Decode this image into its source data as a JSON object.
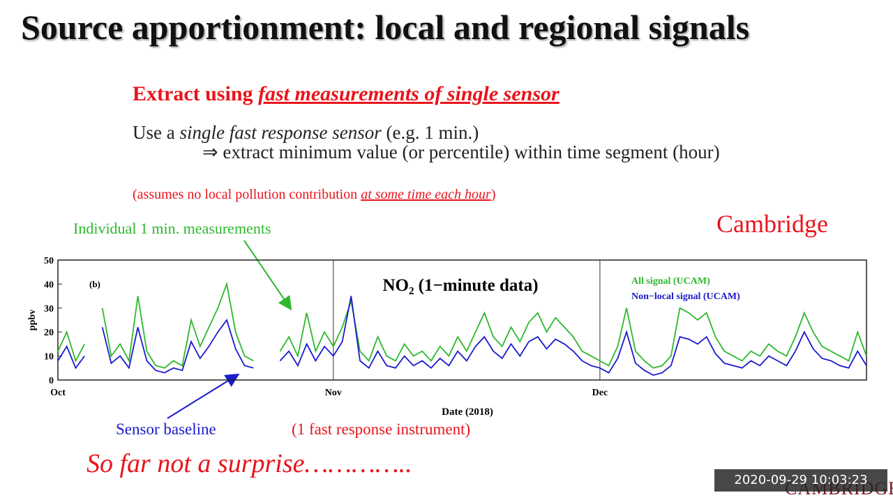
{
  "slide": {
    "title": "Source apportionment: local and regional signals",
    "heading": [
      "Extract using ",
      "fast measurements of single sensor"
    ],
    "line1": [
      "Use a ",
      "single fast response sensor",
      " (e.g. 1 min.)"
    ],
    "line2": "⇒ extract minimum value (or percentile) within time segment (hour)",
    "note": [
      "(assumes no local pollution contribution ",
      "at some time each hour",
      ")"
    ],
    "annotation_green": "Individual 1 min. measurements",
    "place": "Cambridge",
    "annotation_blue": "Sensor baseline",
    "annotation_instrument": "(1 fast response instrument)",
    "conclusion": "So far not a surprise…………..",
    "timestamp": "2020-09-29 10:03:23",
    "logo": "CAMBRIDGE"
  },
  "chart_data": {
    "type": "line",
    "title": "NO₂ (1−minute data)",
    "panel_label": "(b)",
    "xlabel": "Date (2018)",
    "ylabel": "ppbv",
    "ylim": [
      0,
      50
    ],
    "yticks": [
      0,
      10,
      20,
      30,
      40,
      50
    ],
    "categories": [
      "Oct",
      null,
      null,
      null,
      null,
      null,
      null,
      null,
      null,
      null,
      null,
      null,
      null,
      null,
      null,
      null,
      null,
      null,
      null,
      null,
      null,
      null,
      null,
      null,
      null,
      null,
      null,
      null,
      null,
      null,
      null,
      "Nov",
      null,
      null,
      null,
      null,
      null,
      null,
      null,
      null,
      null,
      null,
      null,
      null,
      null,
      null,
      null,
      null,
      null,
      null,
      null,
      null,
      null,
      null,
      null,
      null,
      null,
      null,
      null,
      null,
      null,
      "Dec",
      null,
      null,
      null,
      null,
      null,
      null,
      null,
      null,
      null,
      null,
      null,
      null,
      null,
      null,
      null,
      null,
      null,
      null,
      null,
      null,
      null,
      null,
      null,
      null,
      null,
      null,
      null,
      null,
      null,
      null
    ],
    "series": [
      {
        "name": "All signal (UCAM)",
        "color": "#2db82d",
        "values": [
          12,
          20,
          8,
          15,
          null,
          30,
          10,
          15,
          8,
          35,
          12,
          6,
          5,
          8,
          6,
          25,
          14,
          22,
          30,
          40,
          20,
          10,
          8,
          null,
          null,
          12,
          18,
          10,
          28,
          12,
          20,
          14,
          22,
          33,
          12,
          8,
          18,
          10,
          8,
          15,
          10,
          12,
          8,
          14,
          10,
          18,
          12,
          20,
          28,
          18,
          14,
          22,
          16,
          24,
          28,
          20,
          26,
          22,
          18,
          12,
          10,
          8,
          6,
          14,
          30,
          12,
          8,
          5,
          6,
          10,
          30,
          28,
          25,
          28,
          18,
          12,
          10,
          8,
          12,
          10,
          15,
          12,
          10,
          18,
          28,
          20,
          14,
          12,
          10,
          8,
          20,
          10
        ]
      },
      {
        "name": "Non−local signal (UCAM)",
        "color": "#1a1acc",
        "values": [
          8,
          14,
          5,
          10,
          null,
          22,
          7,
          10,
          5,
          22,
          8,
          4,
          3,
          5,
          4,
          16,
          9,
          14,
          20,
          25,
          13,
          6,
          5,
          null,
          null,
          8,
          12,
          6,
          15,
          8,
          14,
          10,
          16,
          35,
          8,
          5,
          12,
          6,
          5,
          10,
          6,
          8,
          5,
          9,
          6,
          12,
          8,
          14,
          18,
          12,
          9,
          15,
          10,
          16,
          18,
          13,
          17,
          15,
          12,
          8,
          6,
          5,
          3,
          9,
          20,
          7,
          4,
          2,
          3,
          6,
          18,
          17,
          15,
          18,
          11,
          7,
          6,
          5,
          8,
          6,
          10,
          8,
          6,
          12,
          20,
          13,
          9,
          8,
          6,
          5,
          12,
          6
        ]
      }
    ]
  }
}
